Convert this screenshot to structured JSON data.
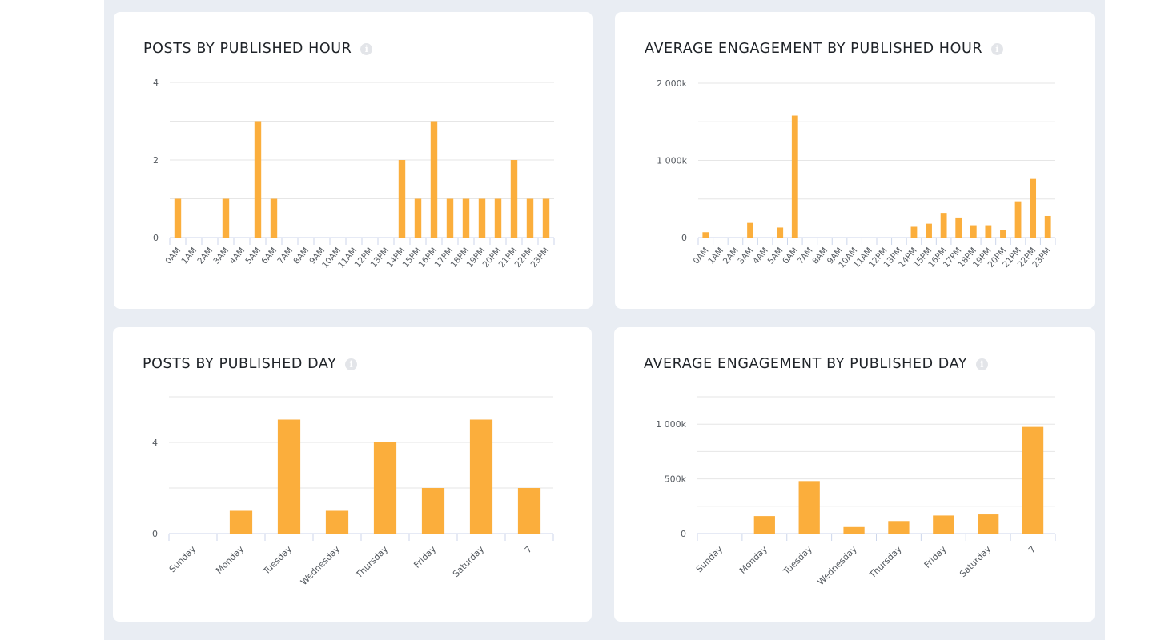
{
  "colors": {
    "bar": "#fbae3c",
    "grid": "#e6e6e6",
    "axis": "#ccd6eb"
  },
  "info_glyph": "i",
  "chart_data": [
    {
      "type": "bar",
      "title": "POSTS BY PUBLISHED HOUR",
      "categories": [
        "0AM",
        "1AM",
        "2AM",
        "3AM",
        "4AM",
        "5AM",
        "6AM",
        "7AM",
        "8AM",
        "9AM",
        "10AM",
        "11AM",
        "12PM",
        "13PM",
        "14PM",
        "15PM",
        "16PM",
        "17PM",
        "18PM",
        "19PM",
        "20PM",
        "21PM",
        "22PM",
        "23PM"
      ],
      "values": [
        1,
        0,
        0,
        1,
        0,
        3,
        1,
        0,
        0,
        0,
        0,
        0,
        0,
        0,
        2,
        1,
        3,
        1,
        1,
        1,
        1,
        2,
        1,
        1
      ],
      "ylim": [
        0,
        4
      ],
      "ticks": [
        0,
        1,
        2,
        3,
        4
      ],
      "tick_labels": [
        "0",
        "",
        "2",
        "",
        "4"
      ],
      "xlabel": "",
      "ylabel": ""
    },
    {
      "type": "bar",
      "title": "AVERAGE ENGAGEMENT BY PUBLISHED HOUR",
      "categories": [
        "0AM",
        "1AM",
        "2AM",
        "3AM",
        "4AM",
        "5AM",
        "6AM",
        "7AM",
        "8AM",
        "9AM",
        "10AM",
        "11AM",
        "12PM",
        "13PM",
        "14PM",
        "15PM",
        "16PM",
        "17PM",
        "18PM",
        "19PM",
        "20PM",
        "21PM",
        "22PM",
        "23PM"
      ],
      "values": [
        70000,
        0,
        0,
        190000,
        0,
        130000,
        1580000,
        0,
        0,
        0,
        0,
        0,
        0,
        0,
        140000,
        180000,
        320000,
        260000,
        160000,
        160000,
        100000,
        470000,
        760000,
        280000
      ],
      "ylim": [
        0,
        2000000
      ],
      "ticks": [
        0,
        500000,
        1000000,
        1500000,
        2000000
      ],
      "tick_labels": [
        "0",
        "",
        "1 000k",
        "",
        "2 000k"
      ],
      "xlabel": "",
      "ylabel": ""
    },
    {
      "type": "bar",
      "title": "POSTS BY PUBLISHED DAY",
      "categories": [
        "Sunday",
        "Monday",
        "Tuesday",
        "Wednesday",
        "Thursday",
        "Friday",
        "Saturday",
        "7"
      ],
      "values": [
        0,
        1,
        5,
        1,
        4,
        2,
        5,
        2
      ],
      "ylim": [
        0,
        6
      ],
      "ticks": [
        0,
        2,
        4,
        6
      ],
      "tick_labels": [
        "0",
        "",
        "4",
        ""
      ],
      "xlabel": "",
      "ylabel": ""
    },
    {
      "type": "bar",
      "title": "AVERAGE ENGAGEMENT BY PUBLISHED DAY",
      "categories": [
        "Sunday",
        "Monday",
        "Tuesday",
        "Wednesday",
        "Thursday",
        "Friday",
        "Saturday",
        "7"
      ],
      "values": [
        0,
        160000,
        480000,
        60000,
        115000,
        165000,
        175000,
        975000
      ],
      "ylim": [
        0,
        1250000
      ],
      "ticks": [
        0,
        250000,
        500000,
        750000,
        1000000,
        1250000
      ],
      "tick_labels": [
        "0",
        "",
        "500k",
        "",
        "1 000k",
        ""
      ],
      "xlabel": "",
      "ylabel": ""
    }
  ]
}
